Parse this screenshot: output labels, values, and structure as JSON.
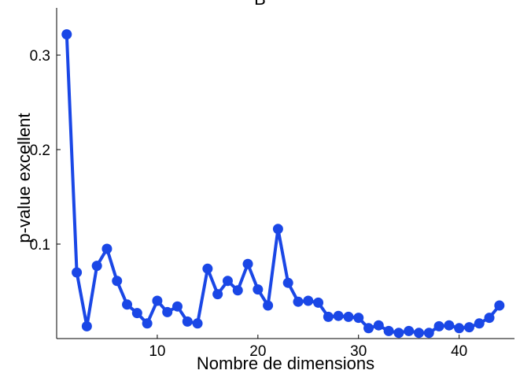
{
  "chart_data": {
    "type": "line",
    "title": "B",
    "xlabel": "Nombre de dimensions",
    "ylabel": "p-value excellent",
    "xlim": [
      0,
      45.5
    ],
    "ylim": [
      0,
      0.35
    ],
    "xticks": [
      10,
      20,
      30,
      40
    ],
    "yticks": [
      0.1,
      0.2,
      0.3
    ],
    "xtick_labels": [
      "10",
      "20",
      "30",
      "40"
    ],
    "ytick_labels": [
      "0.1",
      "0.2",
      "0.3"
    ],
    "grid": false,
    "color": "#1a47e6",
    "series": [
      {
        "x": [
          1,
          2,
          3,
          4,
          5,
          6,
          7,
          8,
          9,
          10,
          11,
          12,
          13,
          14,
          15,
          16,
          17,
          18,
          19,
          20,
          21,
          22,
          23,
          24,
          25,
          26,
          27,
          28,
          29,
          30,
          31,
          32,
          33,
          34,
          35,
          36,
          37,
          38,
          39,
          40,
          41,
          42,
          43,
          44
        ],
        "values": [
          0.322,
          0.07,
          0.013,
          0.077,
          0.095,
          0.061,
          0.036,
          0.027,
          0.016,
          0.04,
          0.028,
          0.034,
          0.018,
          0.016,
          0.074,
          0.047,
          0.061,
          0.051,
          0.079,
          0.052,
          0.035,
          0.116,
          0.059,
          0.039,
          0.04,
          0.038,
          0.023,
          0.024,
          0.023,
          0.022,
          0.011,
          0.014,
          0.008,
          0.006,
          0.008,
          0.006,
          0.006,
          0.013,
          0.014,
          0.011,
          0.012,
          0.016,
          0.022,
          0.035
        ]
      }
    ]
  }
}
